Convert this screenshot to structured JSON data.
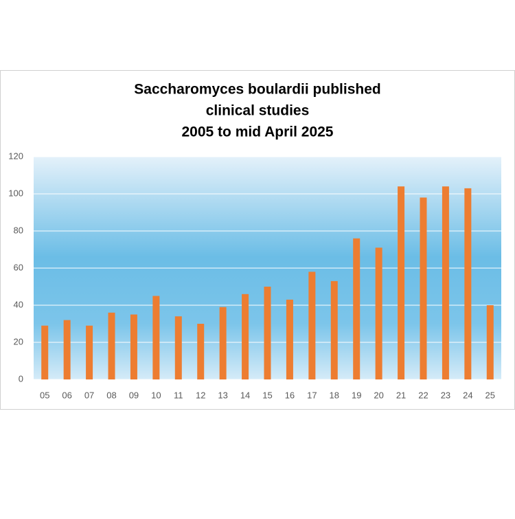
{
  "chart_data": {
    "type": "bar",
    "title": [
      "Saccharomyces boulardii published",
      "clinical studies",
      "2005 to mid April 2025"
    ],
    "categories": [
      "05",
      "06",
      "07",
      "08",
      "09",
      "10",
      "11",
      "12",
      "13",
      "14",
      "15",
      "16",
      "17",
      "18",
      "19",
      "20",
      "21",
      "22",
      "23",
      "24",
      "25"
    ],
    "values": [
      29,
      32,
      29,
      36,
      35,
      45,
      34,
      30,
      39,
      46,
      50,
      43,
      58,
      53,
      76,
      71,
      104,
      98,
      104,
      103,
      40
    ],
    "color": "#ed7d31",
    "ylim": [
      0,
      120
    ],
    "yticks": [
      0,
      20,
      40,
      60,
      80,
      100,
      120
    ],
    "grid": true
  }
}
